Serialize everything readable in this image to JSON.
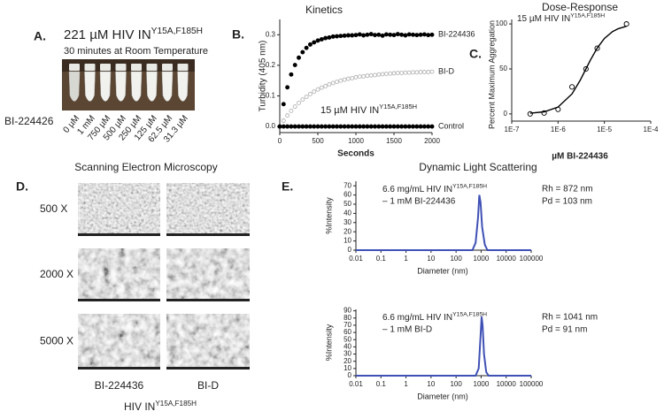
{
  "panel_a": {
    "label": "A.",
    "title": "221 µM HIV IN",
    "title_superscript": "Y15A,F185H",
    "subtitle": "30 minutes at Room Temperature",
    "compound": "BI-224426",
    "concentrations": [
      "0 µM",
      "1 mM",
      "750 µM",
      "500 µM",
      "250 µM",
      "125 µM",
      "62.5 µM",
      "31.3 µM"
    ]
  },
  "panel_d": {
    "label": "D.",
    "title": "Scanning Electron Microscopy",
    "magnifications": [
      "500 X",
      "2000 X",
      "5000 X"
    ],
    "columns": [
      "BI-224436",
      "BI-D"
    ],
    "protein": "HIV IN",
    "protein_superscript": "Y15A,F185H"
  },
  "panel_e": {
    "label": "E.",
    "title": "Dynamic Light Scattering"
  },
  "chart_data": [
    {
      "type": "scatter",
      "panel_label": "B.",
      "title": "Kinetics",
      "annotation": "15 µM HIV IN",
      "annotation_superscript": "Y15A,F185H",
      "xlabel": "Seconds",
      "ylabel": "Turbidity (405 nm)",
      "xlim": [
        0,
        2000
      ],
      "ylim": [
        -0.02,
        0.35
      ],
      "xticks": [
        0,
        500,
        1000,
        1500,
        2000
      ],
      "yticks": [
        {
          "value": 0,
          "label": "0.0"
        },
        0.1,
        0.2,
        0.3
      ],
      "x": [
        0,
        50,
        100,
        150,
        200,
        250,
        300,
        350,
        400,
        450,
        500,
        550,
        600,
        650,
        700,
        750,
        800,
        850,
        900,
        950,
        1000,
        1050,
        1100,
        1150,
        1200,
        1250,
        1300,
        1350,
        1400,
        1450,
        1500,
        1550,
        1600,
        1650,
        1700,
        1750,
        1800,
        1850,
        1900,
        1950,
        2000
      ],
      "series": [
        {
          "name": "BI-224436",
          "color": "#000000",
          "marker": "filled-circle",
          "values": [
            0,
            0.073,
            0.128,
            0.17,
            0.201,
            0.225,
            0.243,
            0.257,
            0.268,
            0.275,
            0.281,
            0.285,
            0.289,
            0.291,
            0.294,
            0.295,
            0.296,
            0.297,
            0.298,
            0.298,
            0.299,
            0.301,
            0.298,
            0.3,
            0.302,
            0.299,
            0.3,
            0.297,
            0.301,
            0.3,
            0.299,
            0.302,
            0.3,
            0.298,
            0.301,
            0.3,
            0.299,
            0.3,
            0.301,
            0.299,
            0.3
          ]
        },
        {
          "name": "BI-D",
          "color": "#b4b4b4",
          "marker": "open-circle",
          "values": [
            0,
            0.019,
            0.036,
            0.051,
            0.065,
            0.077,
            0.088,
            0.097,
            0.106,
            0.114,
            0.121,
            0.127,
            0.132,
            0.138,
            0.142,
            0.146,
            0.15,
            0.153,
            0.156,
            0.158,
            0.161,
            0.163,
            0.164,
            0.166,
            0.167,
            0.168,
            0.17,
            0.171,
            0.172,
            0.173,
            0.174,
            0.175,
            0.175,
            0.176,
            0.176,
            0.177,
            0.177,
            0.178,
            0.178,
            0.178,
            0.179
          ]
        },
        {
          "name": "Control",
          "color": "#000000",
          "marker": "filled-circle",
          "values": [
            0,
            0,
            0,
            0,
            0,
            0,
            0,
            0,
            0,
            0,
            0,
            0,
            0,
            0,
            0,
            0,
            0,
            0,
            0,
            0,
            0,
            0,
            0,
            0,
            0,
            0,
            0,
            0,
            0,
            0,
            0,
            0,
            0,
            0,
            0,
            0,
            0,
            0,
            0,
            0,
            0
          ]
        }
      ]
    },
    {
      "type": "scatter",
      "panel_label": "C.",
      "title": "Dose-Response",
      "subtitle": "15 µM HIV IN",
      "subtitle_superscript": "Y15A,F185H",
      "xlabel": "µM BI-224436",
      "ylabel": "Percent Maximum Aggregation",
      "xscale": "log",
      "xlim": [
        1e-07,
        0.0001
      ],
      "ylim": [
        -8,
        105
      ],
      "xticks": [
        {
          "value": 1e-07,
          "label": "1E-7"
        },
        {
          "value": 1e-06,
          "label": "1E-6"
        },
        {
          "value": 1e-05,
          "label": "1E-5"
        },
        {
          "value": 0.0001,
          "label": "1E-4"
        }
      ],
      "yticks": [
        0,
        50,
        100
      ],
      "series": [
        {
          "color": "#000000",
          "marker": "open-circle",
          "x": [
            2.5e-07,
            5e-07,
            1e-06,
            2e-06,
            4e-06,
            7e-06,
            3e-05
          ],
          "values": [
            0,
            1,
            5,
            30,
            50,
            73,
            100
          ]
        },
        {
          "color": "#000000",
          "style": "line",
          "x": [
            2.5e-07,
            5e-07,
            1e-06,
            2e-06,
            3e-06,
            4e-06,
            5e-06,
            7e-06,
            1e-05,
            1.5e-05,
            2e-05,
            3e-05
          ],
          "values": [
            0.7,
            2.3,
            7.6,
            22.3,
            37.3,
            50,
            59.9,
            73.3,
            83.9,
            91.5,
            94.8,
            97.4
          ]
        }
      ]
    },
    {
      "type": "line",
      "sample": "6.6 mg/mL HIV IN",
      "sample_superscript": "Y15A,F185H",
      "treatment": "– 1 mM BI-224436",
      "stats": [
        "Rh = 872 nm",
        "Pd = 103 nm"
      ],
      "xlabel": "Diameter (nm)",
      "ylabel": "%Intensity",
      "xscale": "log",
      "xlim": [
        0.01,
        100000
      ],
      "ylim": [
        0,
        75
      ],
      "xticks": [
        0.01,
        0.1,
        1,
        10,
        100,
        1000,
        10000,
        100000
      ],
      "yticks": [
        0,
        10,
        20,
        30,
        40,
        50,
        60,
        70
      ],
      "series": [
        {
          "color": "#3f51b5",
          "x": [
            0.01,
            450,
            600,
            750,
            850,
            950,
            1100,
            1400,
            1800,
            100000
          ],
          "values": [
            0,
            0,
            8,
            35,
            60,
            52,
            25,
            6,
            0,
            0
          ]
        }
      ]
    },
    {
      "type": "line",
      "sample": "6.6 mg/mL HIV IN",
      "sample_superscript": "Y15A,F185H",
      "treatment": "– 1 mM BI-D",
      "stats": [
        "Rh = 1041 nm",
        "Pd = 91 nm"
      ],
      "xlabel": "Diameter (nm)",
      "ylabel": "%Intensity",
      "xscale": "log",
      "xlim": [
        0.01,
        100000
      ],
      "ylim": [
        0,
        92
      ],
      "xticks": [
        0.01,
        0.1,
        1,
        10,
        100,
        1000,
        10000,
        100000
      ],
      "yticks": [
        0,
        10,
        20,
        30,
        40,
        50,
        60,
        70,
        80,
        90
      ],
      "series": [
        {
          "color": "#3f51b5",
          "x": [
            0.01,
            600,
            800,
            950,
            1050,
            1150,
            1300,
            1600,
            2000,
            100000
          ],
          "values": [
            0,
            0,
            10,
            55,
            82,
            70,
            30,
            5,
            0,
            0
          ]
        }
      ]
    }
  ]
}
